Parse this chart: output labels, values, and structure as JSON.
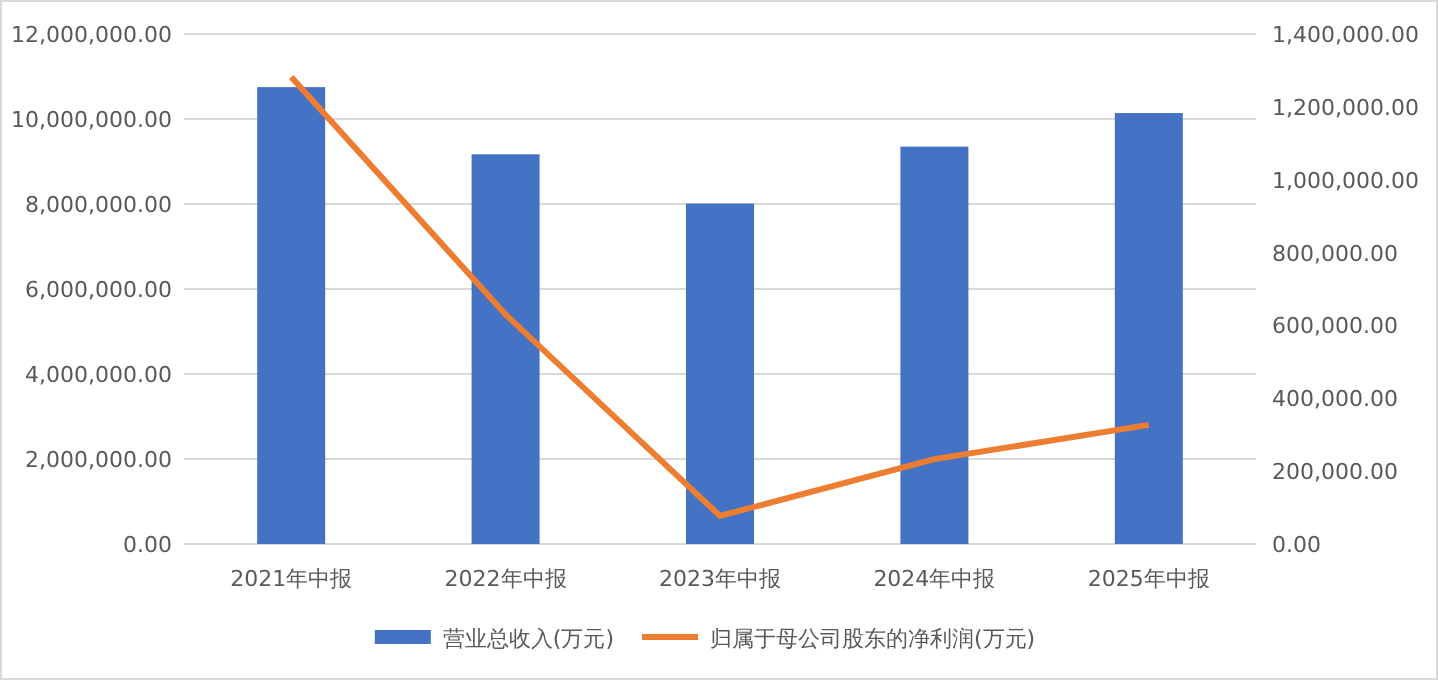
{
  "chart_data": {
    "type": "bar",
    "categories": [
      "2021年中报",
      "2022年中报",
      "2023年中报",
      "2024年中报",
      "2025年中报"
    ],
    "series": [
      {
        "name": "营业总收入(万元)",
        "color": "#4472c4",
        "values": [
          10750000,
          9170000,
          8010000,
          9350000,
          10140000
        ]
      },
      {
        "name": "归属于母公司股东的净利润(万元)",
        "type": "line",
        "axis": "y2",
        "color": "#ed7d31",
        "values": [
          1282000,
          630000,
          77000,
          233000,
          327000
        ]
      }
    ],
    "ylim": [
      0,
      12000000
    ],
    "yticks": [
      {
        "value": 0,
        "label": "0.00"
      },
      {
        "value": 2000000,
        "label": "2,000,000.00"
      },
      {
        "value": 4000000,
        "label": "4,000,000.00"
      },
      {
        "value": 6000000,
        "label": "6,000,000.00"
      },
      {
        "value": 8000000,
        "label": "8,000,000.00"
      },
      {
        "value": 10000000,
        "label": "10,000,000.00"
      },
      {
        "value": 12000000,
        "label": "12,000,000.00"
      }
    ],
    "y2lim": [
      0,
      1400000
    ],
    "y2ticks": [
      {
        "value": 0,
        "label": "0.00"
      },
      {
        "value": 200000,
        "label": "200,000.00"
      },
      {
        "value": 400000,
        "label": "400,000.00"
      },
      {
        "value": 600000,
        "label": "600,000.00"
      },
      {
        "value": 800000,
        "label": "800,000.00"
      },
      {
        "value": 1000000,
        "label": "1,000,000.00"
      },
      {
        "value": 1200000,
        "label": "1,200,000.00"
      },
      {
        "value": 1400000,
        "label": "1,400,000.00"
      }
    ],
    "grid": "y",
    "legend": "bottom",
    "marker": "none"
  }
}
